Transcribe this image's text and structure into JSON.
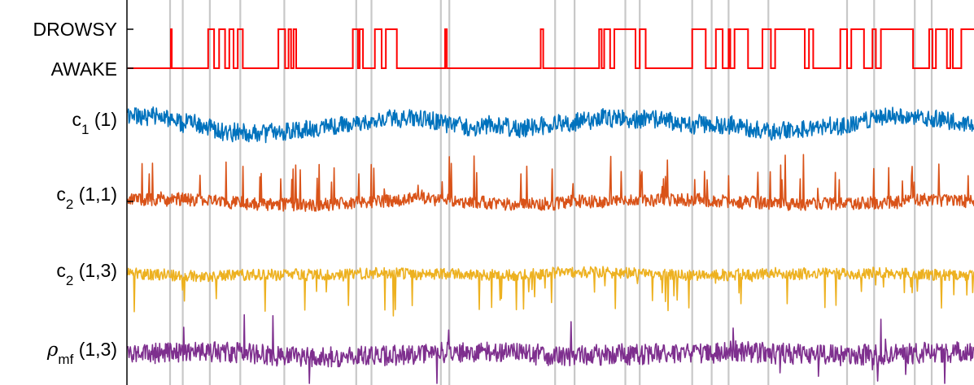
{
  "chart_data": {
    "type": "line",
    "title": "",
    "xlabel": "",
    "grid": "vertical lines only",
    "colors": {
      "state": "#ff0000",
      "c1": "#0072bd",
      "c2_11": "#d95319",
      "c2_13": "#edb120",
      "rho": "#7e2f8e",
      "grid": "#c8c8c8",
      "axis": "#000000"
    },
    "state_ticks": [
      "DROWSY",
      "AWAKE"
    ],
    "rows": [
      {
        "key": "c1",
        "base": "c",
        "sub": "1",
        "suffix": " (1)"
      },
      {
        "key": "c2_11",
        "base": "c",
        "sub": "2",
        "suffix": " (1,1)"
      },
      {
        "key": "c2_13",
        "base": "c",
        "sub": "2",
        "suffix": " (1,3)"
      },
      {
        "key": "rho",
        "base": "ρ",
        "sub": "mf",
        "suffix": " (1,3)"
      }
    ],
    "segment_boundaries": [
      0.05,
      0.065,
      0.097,
      0.133,
      0.185,
      0.27,
      0.288,
      0.37,
      0.38,
      0.505,
      0.528,
      0.588,
      0.605,
      0.667,
      0.69,
      0.71,
      0.757,
      0.85,
      0.882,
      0.93,
      0.95
    ],
    "state_transitions": [
      [
        0.05,
        0
      ],
      [
        0.051,
        1
      ],
      [
        0.052,
        0
      ],
      [
        0.095,
        1
      ],
      [
        0.102,
        0
      ],
      [
        0.108,
        1
      ],
      [
        0.115,
        0
      ],
      [
        0.12,
        1
      ],
      [
        0.125,
        0
      ],
      [
        0.13,
        1
      ],
      [
        0.136,
        0
      ],
      [
        0.178,
        1
      ],
      [
        0.186,
        0
      ],
      [
        0.19,
        1
      ],
      [
        0.193,
        0
      ],
      [
        0.196,
        1
      ],
      [
        0.199,
        0
      ],
      [
        0.266,
        1
      ],
      [
        0.272,
        0
      ],
      [
        0.274,
        1
      ],
      [
        0.278,
        0
      ],
      [
        0.292,
        1
      ],
      [
        0.3,
        0
      ],
      [
        0.305,
        1
      ],
      [
        0.318,
        0
      ],
      [
        0.375,
        1
      ],
      [
        0.377,
        0
      ],
      [
        0.488,
        1
      ],
      [
        0.491,
        0
      ],
      [
        0.557,
        1
      ],
      [
        0.56,
        0
      ],
      [
        0.563,
        1
      ],
      [
        0.57,
        0
      ],
      [
        0.575,
        1
      ],
      [
        0.6,
        0
      ],
      [
        0.605,
        1
      ],
      [
        0.612,
        0
      ],
      [
        0.667,
        1
      ],
      [
        0.683,
        0
      ],
      [
        0.695,
        1
      ],
      [
        0.703,
        0
      ],
      [
        0.71,
        1
      ],
      [
        0.712,
        0
      ],
      [
        0.717,
        1
      ],
      [
        0.733,
        0
      ],
      [
        0.75,
        1
      ],
      [
        0.76,
        0
      ],
      [
        0.765,
        1
      ],
      [
        0.8,
        0
      ],
      [
        0.805,
        1
      ],
      [
        0.81,
        0
      ],
      [
        0.842,
        1
      ],
      [
        0.85,
        0
      ],
      [
        0.855,
        1
      ],
      [
        0.87,
        0
      ],
      [
        0.88,
        1
      ],
      [
        0.884,
        0
      ],
      [
        0.89,
        1
      ],
      [
        0.928,
        0
      ],
      [
        0.947,
        1
      ],
      [
        0.951,
        0
      ],
      [
        0.955,
        1
      ],
      [
        0.968,
        0
      ],
      [
        0.972,
        1
      ],
      [
        0.975,
        0
      ],
      [
        0.985,
        1
      ],
      [
        1.0,
        1
      ]
    ]
  }
}
